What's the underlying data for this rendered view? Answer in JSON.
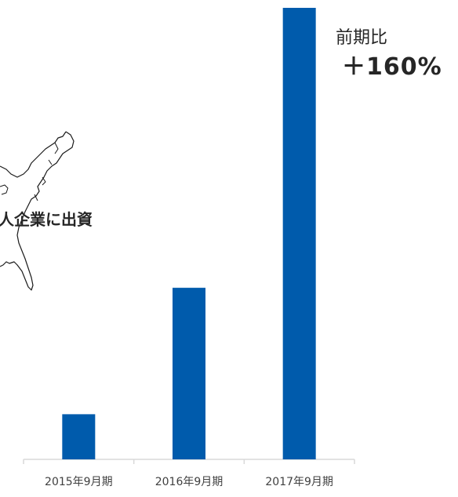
{
  "chart_data": {
    "type": "bar",
    "categories": [
      "2015年9月期",
      "2016年9月期",
      "2017年9月期"
    ],
    "values": [
      10,
      38,
      100
    ],
    "ylim": [
      0,
      100
    ],
    "grid": false,
    "bar_color": "#005bac",
    "axis_color": "#d9d9d9",
    "annotation": {
      "label": "前期比",
      "value": "＋160%"
    }
  },
  "map_inset": {
    "icon": "us-east-coast-map-icon",
    "caption": "人企業に出資"
  }
}
